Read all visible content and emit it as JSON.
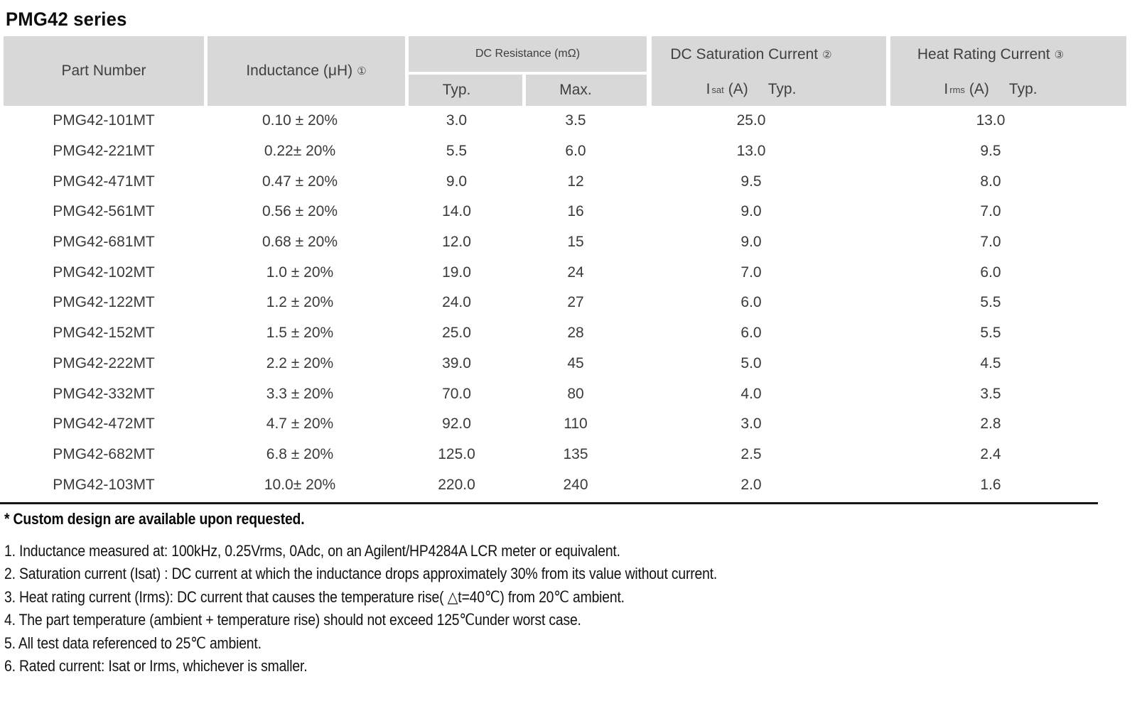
{
  "title": "PMG42 series",
  "colors": {
    "header_bg": "#d8d8d8",
    "header_text": "#3f3f3f",
    "body_text": "#3a3a3a",
    "rule": "#161616"
  },
  "table": {
    "headers": {
      "part_number": "Part Number",
      "inductance": "Inductance (μH)",
      "inductance_sup": "①",
      "dc_resistance": "DC Resistance (mΩ)",
      "typ": "Typ.",
      "max": "Max.",
      "saturation": "DC Saturation Current",
      "saturation_sup": "②",
      "isat_i": "I",
      "isat_sub": "sat",
      "isat_unit": "(A)",
      "isat_typ": "Typ.",
      "heat": "Heat Rating Current",
      "heat_sup": "③",
      "irms_i": "I",
      "irms_sub": "rms",
      "irms_unit": "(A)",
      "irms_typ": "Typ."
    },
    "rows": [
      {
        "part": "PMG42-101MT",
        "inductance": "0.10 ± 20%",
        "typ": "3.0",
        "max": "3.5",
        "isat": "25.0",
        "irms": "13.0"
      },
      {
        "part": "PMG42-221MT",
        "inductance": "0.22± 20%",
        "typ": "5.5",
        "max": "6.0",
        "isat": "13.0",
        "irms": "9.5"
      },
      {
        "part": "PMG42-471MT",
        "inductance": "0.47 ± 20%",
        "typ": "9.0",
        "max": "12",
        "isat": "9.5",
        "irms": "8.0"
      },
      {
        "part": "PMG42-561MT",
        "inductance": "0.56 ± 20%",
        "typ": "14.0",
        "max": "16",
        "isat": "9.0",
        "irms": "7.0"
      },
      {
        "part": "PMG42-681MT",
        "inductance": "0.68 ± 20%",
        "typ": "12.0",
        "max": "15",
        "isat": "9.0",
        "irms": "7.0"
      },
      {
        "part": "PMG42-102MT",
        "inductance": "1.0 ± 20%",
        "typ": "19.0",
        "max": "24",
        "isat": "7.0",
        "irms": "6.0"
      },
      {
        "part": "PMG42-122MT",
        "inductance": "1.2 ± 20%",
        "typ": "24.0",
        "max": "27",
        "isat": "6.0",
        "irms": "5.5"
      },
      {
        "part": "PMG42-152MT",
        "inductance": "1.5 ± 20%",
        "typ": "25.0",
        "max": "28",
        "isat": "6.0",
        "irms": "5.5"
      },
      {
        "part": "PMG42-222MT",
        "inductance": "2.2 ± 20%",
        "typ": "39.0",
        "max": "45",
        "isat": "5.0",
        "irms": "4.5"
      },
      {
        "part": "PMG42-332MT",
        "inductance": "3.3 ± 20%",
        "typ": "70.0",
        "max": "80",
        "isat": "4.0",
        "irms": "3.5"
      },
      {
        "part": "PMG42-472MT",
        "inductance": "4.7 ± 20%",
        "typ": "92.0",
        "max": "110",
        "isat": "3.0",
        "irms": "2.8"
      },
      {
        "part": "PMG42-682MT",
        "inductance": "6.8 ± 20%",
        "typ": "125.0",
        "max": "135",
        "isat": "2.5",
        "irms": "2.4"
      },
      {
        "part": "PMG42-103MT",
        "inductance": "10.0± 20%",
        "typ": "220.0",
        "max": "240",
        "isat": "2.0",
        "irms": "1.6"
      }
    ]
  },
  "notes": {
    "custom": "* Custom design are available upon requested.",
    "items": [
      "1. Inductance measured at: 100kHz, 0.25Vrms, 0Adc, on an Agilent/HP4284A LCR meter or equivalent.",
      "2. Saturation current (Isat) : DC current at which the inductance drops approximately 30% from its value without current.",
      "3. Heat rating current (Irms): DC current that causes the temperature rise( △t=40℃) from 20℃ ambient.",
      "4. The part temperature (ambient + temperature rise) should not exceed 125℃under worst case.",
      "5. All test data referenced to 25℃ ambient.",
      "6. Rated current: Isat or Irms, whichever is smaller."
    ]
  }
}
